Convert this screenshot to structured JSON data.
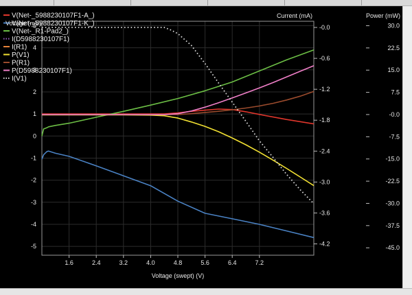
{
  "chart_data": {
    "type": "line",
    "axes": {
      "x": {
        "label": "Voltage (swept) (V)",
        "range": [
          0.8,
          8.8
        ],
        "ticks": [
          "1.6",
          "2.4",
          "3.2",
          "4.0",
          "4.8",
          "5.6",
          "6.4",
          "7.2"
        ]
      },
      "y_left": {
        "label": "Voltage (mV)",
        "range": [
          -5.4,
          5.2
        ],
        "ticks": [
          "5",
          "4",
          "3",
          "2",
          "1",
          "0",
          "-1",
          "-2",
          "-3",
          "-4",
          "-5"
        ]
      },
      "y_current": {
        "label": "Current (mA)",
        "range": [
          -4.42,
          0.12
        ],
        "ticks": [
          "-0.0",
          "-0.6",
          "-1.2",
          "-1.8",
          "-2.4",
          "-3.0",
          "-3.6",
          "-4.2"
        ]
      },
      "y_power": {
        "label": "Power (mW)",
        "range": [
          -47.5,
          31.5
        ],
        "ticks": [
          "30.0",
          "22.5",
          "15.0",
          "7.5",
          "-0.0",
          "-7.5",
          "-15.0",
          "-22.5",
          "-30.0",
          "-37.5",
          "-45.0"
        ]
      }
    },
    "grid": true,
    "legend_position": "top-left",
    "series": [
      {
        "name": "V(Net-_5988230107F1-A_)",
        "color": "#e0362c",
        "axis": "y_left",
        "style": "solid",
        "x": [
          0.8,
          2.0,
          3.2,
          4.4,
          4.8,
          5.2,
          5.6,
          6.0,
          6.4,
          6.8,
          7.2,
          8.0,
          8.8
        ],
        "y": [
          1.0,
          1.0,
          1.0,
          1.0,
          1.05,
          1.12,
          1.17,
          1.22,
          1.2,
          1.1,
          0.98,
          0.75,
          0.55
        ]
      },
      {
        "name": "V(Net-_5988230107F1-K_)",
        "color": "#4a82c4",
        "axis": "y_left",
        "style": "solid",
        "x": [
          0.8,
          0.85,
          0.95,
          1.0,
          1.2,
          1.6,
          2.4,
          3.2,
          4.0,
          4.8,
          5.6,
          6.4,
          7.2,
          8.0,
          8.8
        ],
        "y": [
          -1.05,
          -0.85,
          -0.7,
          -0.68,
          -0.78,
          -0.92,
          -1.35,
          -1.8,
          -2.25,
          -2.95,
          -3.5,
          -3.75,
          -4.0,
          -4.3,
          -4.6
        ]
      },
      {
        "name": "V(Net-_R1-Pad2_)",
        "color": "#6cbe45",
        "axis": "y_left",
        "style": "solid",
        "x": [
          0.8,
          0.85,
          0.95,
          1.0,
          1.2,
          1.6,
          2.4,
          3.2,
          4.0,
          4.8,
          5.6,
          6.4,
          7.2,
          8.0,
          8.8
        ],
        "y": [
          0.0,
          0.32,
          0.38,
          0.42,
          0.48,
          0.58,
          0.85,
          1.12,
          1.4,
          1.7,
          2.05,
          2.45,
          2.95,
          3.45,
          3.9
        ]
      },
      {
        "name": "I(D5988230107F1)",
        "color": "#9e5fc8",
        "axis": "y_current",
        "style": "dotted",
        "x": [],
        "y": []
      },
      {
        "name": "I(R1)",
        "color": "#e8833a",
        "axis": "y_current",
        "style": "solid",
        "x": [],
        "y": []
      },
      {
        "name": "P(V1)",
        "color": "#f2e132",
        "axis": "y_power",
        "style": "solid",
        "x": [
          0.8,
          2.0,
          3.2,
          4.0,
          4.4,
          4.8,
          5.2,
          5.6,
          6.0,
          6.4,
          6.8,
          7.2,
          7.6,
          8.0,
          8.4,
          8.8
        ],
        "y": [
          -0.1,
          -0.1,
          -0.1,
          -0.2,
          -0.4,
          -1.2,
          -2.5,
          -4.0,
          -5.8,
          -7.9,
          -10.2,
          -12.7,
          -15.4,
          -18.2,
          -21.1,
          -24.0
        ]
      },
      {
        "name": "P(R1)",
        "color": "#9b4b2d",
        "axis": "y_power",
        "style": "solid",
        "x": [
          0.8,
          4.8,
          5.2,
          5.6,
          6.0,
          6.4,
          6.8,
          7.2,
          7.6,
          8.0,
          8.4,
          8.8
        ],
        "y": [
          0.0,
          0.0,
          0.3,
          0.7,
          1.1,
          1.6,
          2.2,
          2.9,
          3.8,
          4.9,
          6.2,
          7.8
        ]
      },
      {
        "name": "P(D5988230107F1)",
        "color": "#f07fc8",
        "axis": "y_power",
        "style": "solid",
        "x": [
          0.8,
          4.4,
          4.8,
          5.2,
          5.6,
          6.0,
          6.4,
          6.8,
          7.2,
          7.6,
          8.0,
          8.4,
          8.8
        ],
        "y": [
          0.0,
          0.0,
          0.3,
          1.2,
          2.5,
          4.0,
          5.6,
          7.3,
          9.0,
          10.8,
          12.7,
          14.6,
          16.5
        ]
      },
      {
        "name": "I(V1)",
        "color": "#d9d9d9",
        "axis": "y_current",
        "style": "dotted",
        "x": [
          0.8,
          4.0,
          4.4,
          4.6,
          4.8,
          5.2,
          5.6,
          6.0,
          6.4,
          6.8,
          7.2,
          7.6,
          8.0,
          8.4,
          8.8
        ],
        "y": [
          0.0,
          0.0,
          0.0,
          -0.05,
          -0.12,
          -0.35,
          -0.7,
          -1.08,
          -1.45,
          -1.82,
          -2.2,
          -2.52,
          -2.85,
          -3.15,
          -3.42
        ]
      }
    ]
  }
}
